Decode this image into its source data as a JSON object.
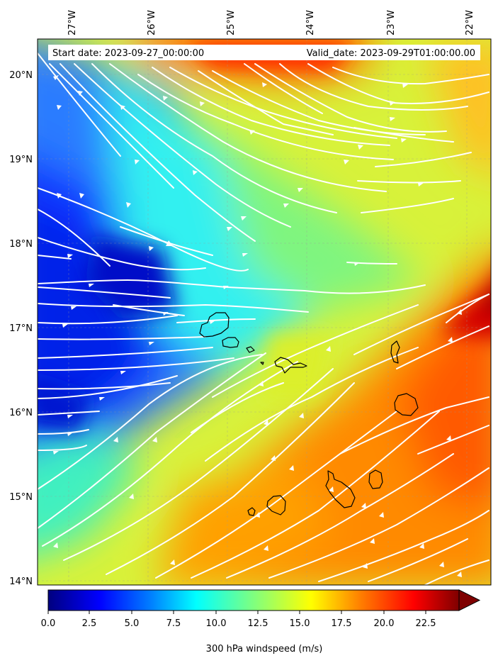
{
  "header": {
    "start_label": "Start date: 2023-09-27_00:00:00",
    "valid_label": "Valid_date: 2023-09-29T01:00:00.00"
  },
  "axes": {
    "lon_ticks": [
      "27°W",
      "26°W",
      "25°W",
      "24°W",
      "23°W",
      "22°W"
    ],
    "lat_ticks": [
      "20°N",
      "19°N",
      "18°N",
      "17°N",
      "16°N",
      "15°N",
      "14°N"
    ]
  },
  "colorbar": {
    "label": "300 hPa windspeed (m/s)",
    "ticks": [
      "0.0",
      "2.5",
      "5.0",
      "7.5",
      "10.0",
      "12.5",
      "15.0",
      "17.5",
      "20.0",
      "22.5"
    ],
    "range": [
      0,
      25
    ],
    "colormap": [
      "#00007f",
      "#0000ff",
      "#007fff",
      "#00ffff",
      "#7fff7f",
      "#ffff00",
      "#ff7f00",
      "#ff0000",
      "#7f0000"
    ]
  },
  "map": {
    "extent_lon": [
      -27.4,
      -21.7
    ],
    "extent_lat": [
      13.95,
      20.4
    ],
    "gridlines": true,
    "field": "300 hPa windspeed",
    "streamline_color": "#ffffff",
    "coastline_color": "#000000"
  }
}
